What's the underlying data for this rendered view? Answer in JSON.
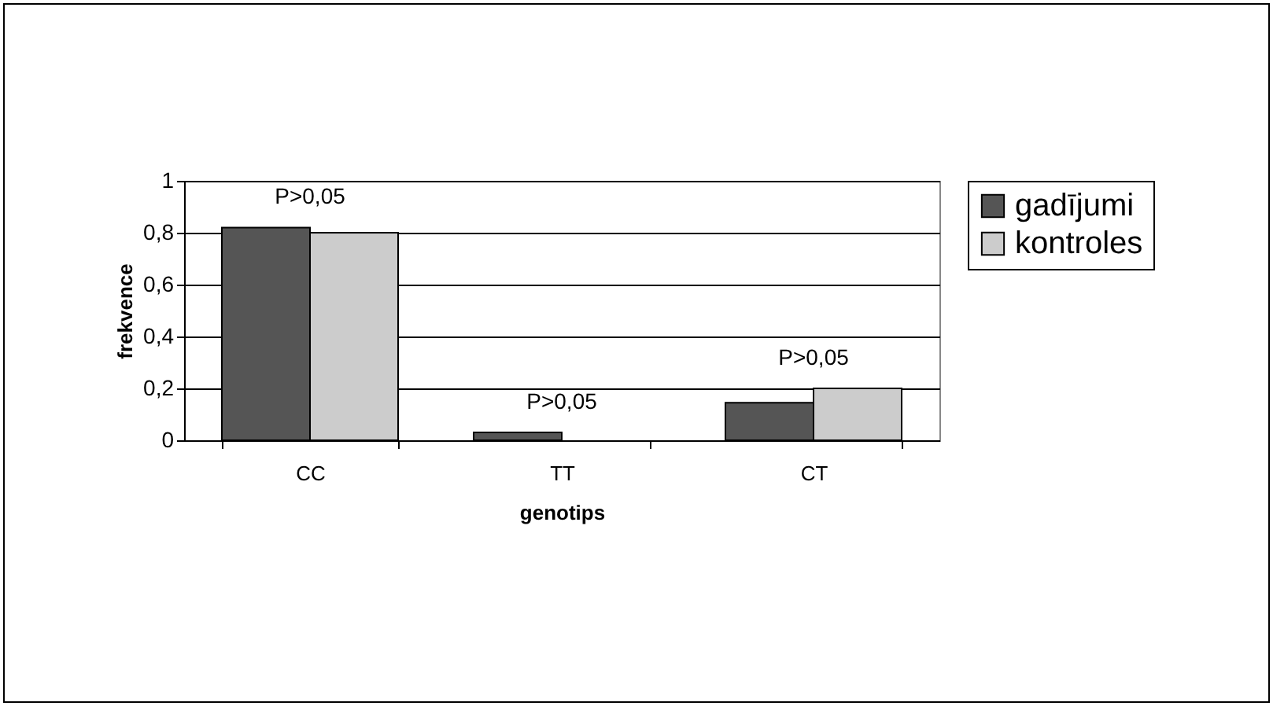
{
  "chart_data": {
    "type": "bar",
    "xlabel": "genotips",
    "ylabel": "frekvence",
    "categories": [
      "CC",
      "TT",
      "CT"
    ],
    "series": [
      {
        "name": "gadījumi",
        "color": "#555555",
        "values": [
          0.82,
          0.03,
          0.145
        ]
      },
      {
        "name": "kontroles",
        "color": "#cccccc",
        "values": [
          0.8,
          0,
          0.2
        ]
      }
    ],
    "ylim": [
      0,
      1
    ],
    "yticks": [
      {
        "value": 0,
        "label": "0"
      },
      {
        "value": 0.2,
        "label": "0,2"
      },
      {
        "value": 0.4,
        "label": "0,4"
      },
      {
        "value": 0.6,
        "label": "0,6"
      },
      {
        "value": 0.8,
        "label": "0,8"
      },
      {
        "value": 1,
        "label": "1"
      }
    ],
    "grid": "y",
    "legend": "right",
    "annotations": [
      "P>0,05",
      "P>0,05",
      "P>0,05"
    ]
  }
}
